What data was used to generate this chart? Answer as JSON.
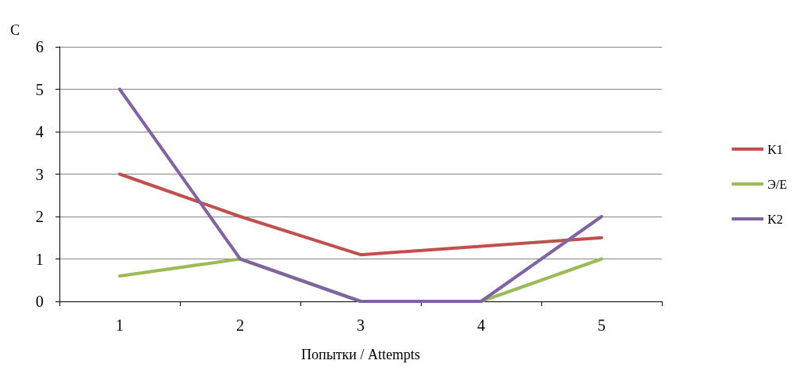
{
  "chart_data": {
    "type": "line",
    "ylabel": "C",
    "xlabel": "Попытки / Attempts",
    "categories": [
      "1",
      "2",
      "3",
      "4",
      "5"
    ],
    "series": [
      {
        "name": "K1",
        "color": "#c0504d",
        "values": [
          3,
          2,
          1.1,
          1.3,
          1.5
        ]
      },
      {
        "name": "Э/E",
        "color": "#9bbb59",
        "values": [
          0.6,
          1,
          0,
          0,
          1
        ]
      },
      {
        "name": "K2",
        "color": "#8064a2",
        "values": [
          5,
          1,
          0,
          0,
          2
        ]
      }
    ],
    "ylim": [
      0,
      6
    ],
    "yticks": [
      0,
      1,
      2,
      3,
      4,
      5,
      6
    ],
    "grid": "y",
    "legend": "right",
    "marker": "none",
    "line_style": "solid"
  }
}
